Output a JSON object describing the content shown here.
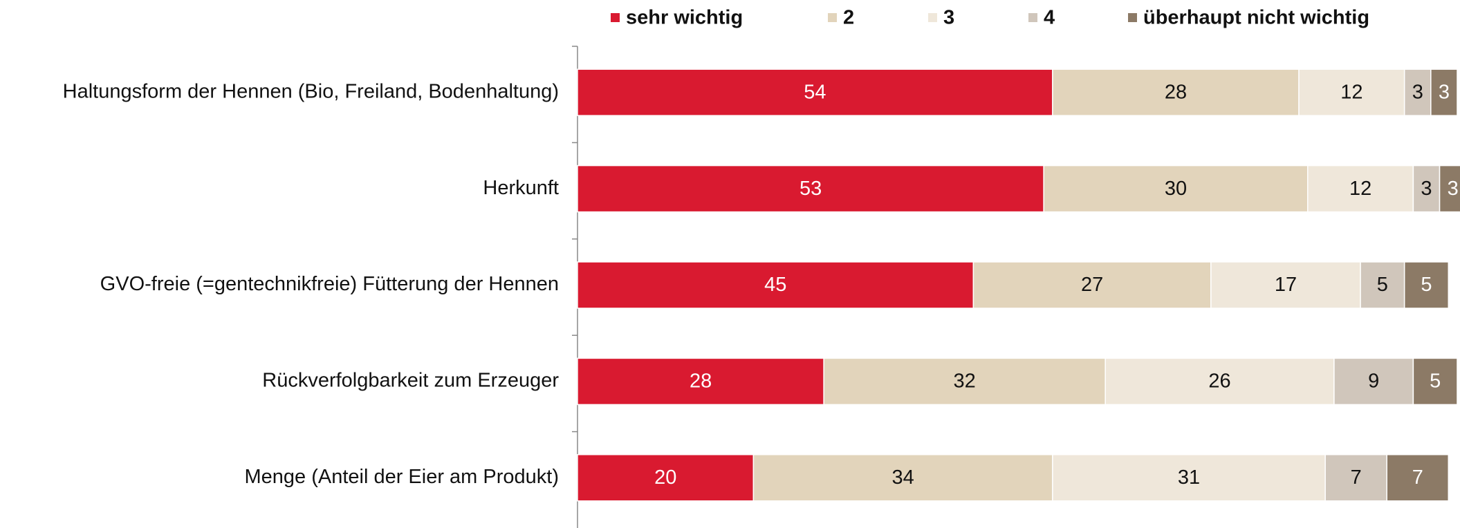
{
  "chart_data": {
    "type": "stacked-bar-horizontal",
    "categories": [
      "Haltungsform der Hennen (Bio, Freiland, Bodenhaltung)",
      "Herkunft",
      "GVO-freie (=gentechnikfreie) Fütterung der Hennen",
      "Rückverfolgbarkeit zum Erzeuger",
      "Menge (Anteil der Eier am Produkt)"
    ],
    "series": [
      {
        "name": "sehr wichtig",
        "color": "#d91a30",
        "values": [
          54,
          53,
          45,
          28,
          20
        ]
      },
      {
        "name": "2",
        "color": "#e2d4bb",
        "values": [
          28,
          30,
          27,
          32,
          34
        ]
      },
      {
        "name": "3",
        "color": "#efe7da",
        "values": [
          12,
          12,
          17,
          26,
          31
        ]
      },
      {
        "name": "4",
        "color": "#d0c6bb",
        "values": [
          3,
          3,
          5,
          9,
          7
        ]
      },
      {
        "name": "überhaupt nicht wichtig",
        "color": "#8c7a66",
        "values": [
          3,
          3,
          5,
          5,
          7
        ]
      }
    ],
    "xlim": [
      0,
      100
    ],
    "legend": "top"
  }
}
